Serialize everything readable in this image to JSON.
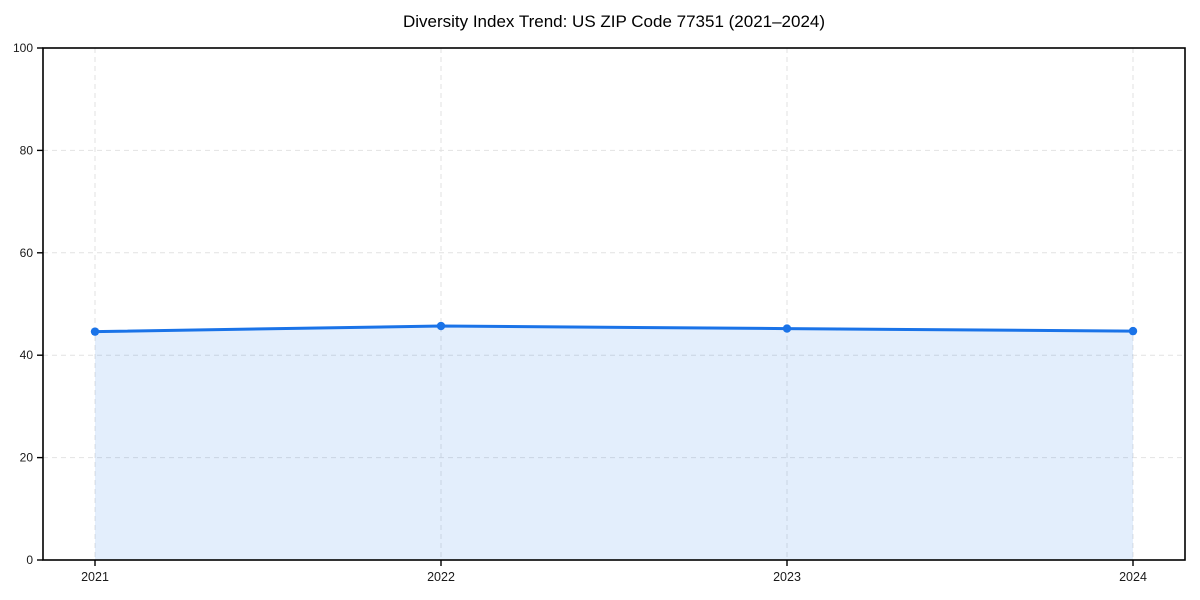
{
  "chart_data": {
    "type": "area",
    "title": "Diversity Index Trend: US ZIP Code 77351 (2021–2024)",
    "categories": [
      "2021",
      "2022",
      "2023",
      "2024"
    ],
    "series": [
      {
        "name": "Diversity Index",
        "values": [
          44.6,
          45.7,
          45.2,
          44.7
        ]
      }
    ],
    "xlabel": "",
    "ylabel": "",
    "ylim": [
      0,
      100
    ],
    "yticks": [
      0,
      20,
      40,
      60,
      80,
      100
    ],
    "grid": "dashed",
    "legend_position": "none",
    "colors": {
      "line": "#1a73e8",
      "marker": "#1a73e8",
      "fill": "#1a73e8",
      "fill_opacity": "0.12",
      "grid": "#e2e2e2",
      "axis": "#000000",
      "tick_label": "#1a1a1a",
      "title": "#000000"
    }
  }
}
